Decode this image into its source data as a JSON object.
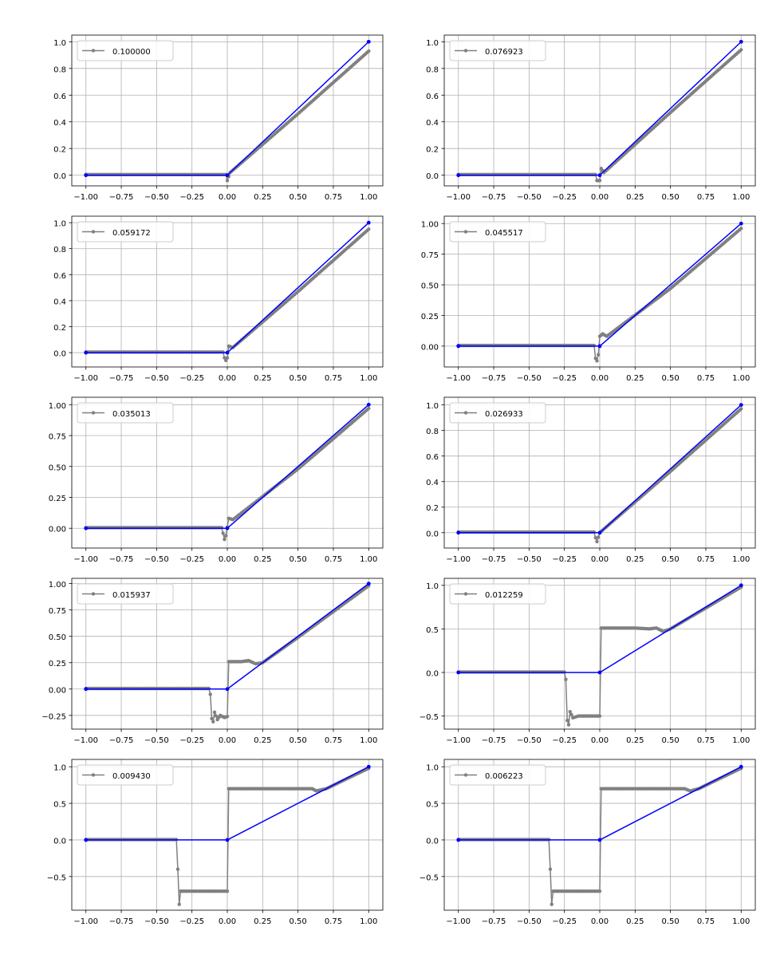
{
  "chart_data": [
    {
      "type": "line",
      "legend": "top-left",
      "xlim": [
        -1.1,
        1.1
      ],
      "ylim": [
        -0.08,
        1.05
      ],
      "xticks": [
        -1.0,
        -0.75,
        -0.5,
        -0.25,
        0.0,
        0.25,
        0.5,
        0.75,
        1.0
      ],
      "xtick_labels": [
        "−1.00",
        "−0.75",
        "−0.50",
        "−0.25",
        "0.00",
        "0.25",
        "0.50",
        "0.75",
        "1.00"
      ],
      "yticks": [
        0.0,
        0.2,
        0.4,
        0.6,
        0.8,
        1.0
      ],
      "ytick_labels": [
        "0.0",
        "0.2",
        "0.4",
        "0.6",
        "0.8",
        "1.0"
      ],
      "grid": true,
      "series": [
        {
          "name": "0.100000",
          "color": "#808080",
          "points": [
            [
              -1,
              0.005
            ],
            [
              -0.01,
              0.005
            ],
            [
              0,
              -0.04
            ],
            [
              0.02,
              0.02
            ],
            [
              0.5,
              0.46
            ],
            [
              1.0,
              0.93
            ]
          ]
        },
        {
          "color": "#0000ff",
          "points": [
            [
              -1,
              0
            ],
            [
              0,
              0
            ],
            [
              1,
              1
            ]
          ]
        }
      ]
    },
    {
      "type": "line",
      "legend": "top-left",
      "xlim": [
        -1.1,
        1.1
      ],
      "ylim": [
        -0.08,
        1.05
      ],
      "xticks": [
        -1.0,
        -0.75,
        -0.5,
        -0.25,
        0.0,
        0.25,
        0.5,
        0.75,
        1.0
      ],
      "xtick_labels": [
        "−1.00",
        "−0.75",
        "−0.50",
        "−0.25",
        "0.00",
        "0.25",
        "0.50",
        "0.75",
        "1.00"
      ],
      "yticks": [
        0.0,
        0.2,
        0.4,
        0.6,
        0.8,
        1.0
      ],
      "ytick_labels": [
        "0.0",
        "0.2",
        "0.4",
        "0.6",
        "0.8",
        "1.0"
      ],
      "grid": true,
      "series": [
        {
          "name": "0.076923",
          "color": "#808080",
          "points": [
            [
              -1,
              0.005
            ],
            [
              -0.03,
              0.005
            ],
            [
              -0.02,
              -0.04
            ],
            [
              0.0,
              -0.04
            ],
            [
              0.01,
              0.05
            ],
            [
              0.03,
              0.02
            ],
            [
              0.5,
              0.47
            ],
            [
              1.0,
              0.94
            ]
          ]
        },
        {
          "color": "#0000ff",
          "points": [
            [
              -1,
              0
            ],
            [
              0,
              0
            ],
            [
              1,
              1
            ]
          ]
        }
      ]
    },
    {
      "type": "line",
      "legend": "top-left",
      "xlim": [
        -1.1,
        1.1
      ],
      "ylim": [
        -0.11,
        1.05
      ],
      "xticks": [
        -1.0,
        -0.75,
        -0.5,
        -0.25,
        0.0,
        0.25,
        0.5,
        0.75,
        1.0
      ],
      "xtick_labels": [
        "−1.00",
        "−0.75",
        "−0.50",
        "−0.25",
        "0.00",
        "0.25",
        "0.50",
        "0.75",
        "1.00"
      ],
      "yticks": [
        0.0,
        0.2,
        0.4,
        0.6,
        0.8,
        1.0
      ],
      "ytick_labels": [
        "0.0",
        "0.2",
        "0.4",
        "0.6",
        "0.8",
        "1.0"
      ],
      "grid": true,
      "series": [
        {
          "name": "0.059172",
          "color": "#808080",
          "points": [
            [
              -1,
              0.005
            ],
            [
              -0.03,
              0.005
            ],
            [
              -0.02,
              -0.04
            ],
            [
              -0.01,
              -0.06
            ],
            [
              0.0,
              -0.04
            ],
            [
              0.01,
              0.05
            ],
            [
              0.04,
              0.04
            ],
            [
              0.5,
              0.47
            ],
            [
              1.0,
              0.95
            ]
          ]
        },
        {
          "color": "#0000ff",
          "points": [
            [
              -1,
              0
            ],
            [
              0,
              0
            ],
            [
              1,
              1
            ]
          ]
        }
      ]
    },
    {
      "type": "line",
      "legend": "top-left",
      "xlim": [
        -1.1,
        1.1
      ],
      "ylim": [
        -0.17,
        1.06
      ],
      "xticks": [
        -1.0,
        -0.75,
        -0.5,
        -0.25,
        0.0,
        0.25,
        0.5,
        0.75,
        1.0
      ],
      "xtick_labels": [
        "−1.00",
        "−0.75",
        "−0.50",
        "−0.25",
        "0.00",
        "0.25",
        "0.50",
        "0.75",
        "1.00"
      ],
      "yticks": [
        0.0,
        0.25,
        0.5,
        0.75,
        1.0
      ],
      "ytick_labels": [
        "0.00",
        "0.25",
        "0.50",
        "0.75",
        "1.00"
      ],
      "grid": true,
      "series": [
        {
          "name": "0.045517",
          "color": "#808080",
          "points": [
            [
              -1,
              0.005
            ],
            [
              -0.04,
              0.005
            ],
            [
              -0.03,
              -0.1
            ],
            [
              -0.02,
              -0.12
            ],
            [
              -0.01,
              -0.07
            ],
            [
              0.0,
              0.08
            ],
            [
              0.02,
              0.1
            ],
            [
              0.05,
              0.08
            ],
            [
              0.5,
              0.47
            ],
            [
              1.0,
              0.96
            ]
          ]
        },
        {
          "color": "#0000ff",
          "points": [
            [
              -1,
              0
            ],
            [
              0,
              0
            ],
            [
              1,
              1
            ]
          ]
        }
      ]
    },
    {
      "type": "line",
      "legend": "top-left",
      "xlim": [
        -1.1,
        1.1
      ],
      "ylim": [
        -0.16,
        1.06
      ],
      "xticks": [
        -1.0,
        -0.75,
        -0.5,
        -0.25,
        0.0,
        0.25,
        0.5,
        0.75,
        1.0
      ],
      "xtick_labels": [
        "−1.00",
        "−0.75",
        "−0.50",
        "−0.25",
        "0.00",
        "0.25",
        "0.50",
        "0.75",
        "1.00"
      ],
      "yticks": [
        0.0,
        0.25,
        0.5,
        0.75,
        1.0
      ],
      "ytick_labels": [
        "0.00",
        "0.25",
        "0.50",
        "0.75",
        "1.00"
      ],
      "grid": true,
      "series": [
        {
          "name": "0.035013",
          "color": "#808080",
          "points": [
            [
              -1,
              0.005
            ],
            [
              -0.04,
              0.005
            ],
            [
              -0.03,
              -0.04
            ],
            [
              -0.02,
              -0.09
            ],
            [
              -0.01,
              -0.06
            ],
            [
              0.01,
              0.08
            ],
            [
              0.04,
              0.07
            ],
            [
              0.5,
              0.48
            ],
            [
              1.0,
              0.97
            ]
          ]
        },
        {
          "color": "#0000ff",
          "points": [
            [
              -1,
              0
            ],
            [
              0,
              0
            ],
            [
              1,
              1
            ]
          ]
        }
      ]
    },
    {
      "type": "line",
      "legend": "top-left",
      "xlim": [
        -1.1,
        1.1
      ],
      "ylim": [
        -0.12,
        1.06
      ],
      "xticks": [
        -1.0,
        -0.75,
        -0.5,
        -0.25,
        0.0,
        0.25,
        0.5,
        0.75,
        1.0
      ],
      "xtick_labels": [
        "−1.00",
        "−0.75",
        "−0.50",
        "−0.25",
        "0.00",
        "0.25",
        "0.50",
        "0.75",
        "1.00"
      ],
      "yticks": [
        0.0,
        0.2,
        0.4,
        0.6,
        0.8,
        1.0
      ],
      "ytick_labels": [
        "0.0",
        "0.2",
        "0.4",
        "0.6",
        "0.8",
        "1.0"
      ],
      "grid": true,
      "series": [
        {
          "name": "0.026933",
          "color": "#808080",
          "points": [
            [
              -1,
              0.005
            ],
            [
              -0.04,
              0.005
            ],
            [
              -0.03,
              -0.04
            ],
            [
              -0.02,
              -0.07
            ],
            [
              0.0,
              0.0
            ],
            [
              0.02,
              0.02
            ],
            [
              0.5,
              0.48
            ],
            [
              1.0,
              0.97
            ]
          ]
        },
        {
          "color": "#0000ff",
          "points": [
            [
              -1,
              0
            ],
            [
              0,
              0
            ],
            [
              1,
              1
            ]
          ]
        }
      ]
    },
    {
      "type": "line",
      "legend": "top-left",
      "xlim": [
        -1.1,
        1.1
      ],
      "ylim": [
        -0.38,
        1.05
      ],
      "xticks": [
        -1.0,
        -0.75,
        -0.5,
        -0.25,
        0.0,
        0.25,
        0.5,
        0.75,
        1.0
      ],
      "xtick_labels": [
        "−1.00",
        "−0.75",
        "−0.50",
        "−0.25",
        "0.00",
        "0.25",
        "0.50",
        "0.75",
        "1.00"
      ],
      "yticks": [
        -0.25,
        0.0,
        0.25,
        0.5,
        0.75,
        1.0
      ],
      "ytick_labels": [
        "−0.25",
        "0.00",
        "0.25",
        "0.50",
        "0.75",
        "1.00"
      ],
      "grid": true,
      "series": [
        {
          "name": "0.015937",
          "color": "#808080",
          "points": [
            [
              -1,
              0.005
            ],
            [
              -0.13,
              0.005
            ],
            [
              -0.12,
              -0.05
            ],
            [
              -0.11,
              -0.28
            ],
            [
              -0.1,
              -0.31
            ],
            [
              -0.09,
              -0.22
            ],
            [
              -0.07,
              -0.29
            ],
            [
              -0.05,
              -0.25
            ],
            [
              -0.02,
              -0.27
            ],
            [
              0.0,
              -0.26
            ],
            [
              0.01,
              0.26
            ],
            [
              0.1,
              0.26
            ],
            [
              0.15,
              0.27
            ],
            [
              0.2,
              0.24
            ],
            [
              0.25,
              0.25
            ],
            [
              0.5,
              0.49
            ],
            [
              1.0,
              0.98
            ]
          ]
        },
        {
          "color": "#0000ff",
          "points": [
            [
              -1,
              0
            ],
            [
              0,
              0
            ],
            [
              1,
              1
            ]
          ]
        }
      ]
    },
    {
      "type": "line",
      "legend": "top-left",
      "xlim": [
        -1.1,
        1.1
      ],
      "ylim": [
        -0.65,
        1.08
      ],
      "xticks": [
        -1.0,
        -0.75,
        -0.5,
        -0.25,
        0.0,
        0.25,
        0.5,
        0.75,
        1.0
      ],
      "xtick_labels": [
        "−1.00",
        "−0.75",
        "−0.50",
        "−0.25",
        "0.00",
        "0.25",
        "0.50",
        "0.75",
        "1.00"
      ],
      "yticks": [
        -0.5,
        0.0,
        0.5,
        1.0
      ],
      "ytick_labels": [
        "−0.5",
        "0.0",
        "0.5",
        "1.0"
      ],
      "grid": true,
      "series": [
        {
          "name": "0.012259",
          "color": "#808080",
          "points": [
            [
              -1,
              0.005
            ],
            [
              -0.25,
              0.005
            ],
            [
              -0.24,
              -0.08
            ],
            [
              -0.23,
              -0.55
            ],
            [
              -0.22,
              -0.6
            ],
            [
              -0.21,
              -0.45
            ],
            [
              -0.19,
              -0.52
            ],
            [
              -0.15,
              -0.5
            ],
            [
              0.0,
              -0.5
            ],
            [
              0.01,
              0.51
            ],
            [
              0.25,
              0.51
            ],
            [
              0.35,
              0.5
            ],
            [
              0.4,
              0.51
            ],
            [
              0.45,
              0.47
            ],
            [
              0.5,
              0.5
            ],
            [
              1.0,
              0.98
            ]
          ]
        },
        {
          "color": "#0000ff",
          "points": [
            [
              -1,
              0
            ],
            [
              0,
              0
            ],
            [
              1,
              1
            ]
          ]
        }
      ]
    },
    {
      "type": "line",
      "legend": "top-left",
      "xlim": [
        -1.1,
        1.1
      ],
      "ylim": [
        -0.96,
        1.1
      ],
      "xticks": [
        -1.0,
        -0.75,
        -0.5,
        -0.25,
        0.0,
        0.25,
        0.5,
        0.75,
        1.0
      ],
      "xtick_labels": [
        "−1.00",
        "−0.75",
        "−0.50",
        "−0.25",
        "0.00",
        "0.25",
        "0.50",
        "0.75",
        "1.00"
      ],
      "yticks": [
        -0.5,
        0.0,
        0.5,
        1.0
      ],
      "ytick_labels": [
        "−0.5",
        "0.0",
        "0.5",
        "1.0"
      ],
      "grid": true,
      "series": [
        {
          "name": "0.009430",
          "color": "#808080",
          "points": [
            [
              -1,
              0.005
            ],
            [
              -0.36,
              0.005
            ],
            [
              -0.35,
              -0.4
            ],
            [
              -0.34,
              -0.88
            ],
            [
              -0.33,
              -0.7
            ],
            [
              -0.3,
              -0.7
            ],
            [
              0.0,
              -0.7
            ],
            [
              0.01,
              0.7
            ],
            [
              0.55,
              0.7
            ],
            [
              0.6,
              0.7
            ],
            [
              0.63,
              0.67
            ],
            [
              0.7,
              0.7
            ],
            [
              1.0,
              0.98
            ]
          ]
        },
        {
          "color": "#0000ff",
          "points": [
            [
              -1,
              0
            ],
            [
              0,
              0
            ],
            [
              1,
              1
            ]
          ]
        }
      ]
    },
    {
      "type": "line",
      "legend": "top-left",
      "xlim": [
        -1.1,
        1.1
      ],
      "ylim": [
        -0.96,
        1.1
      ],
      "xticks": [
        -1.0,
        -0.75,
        -0.5,
        -0.25,
        0.0,
        0.25,
        0.5,
        0.75,
        1.0
      ],
      "xtick_labels": [
        "−1.00",
        "−0.75",
        "−0.50",
        "−0.25",
        "0.00",
        "0.25",
        "0.50",
        "0.75",
        "1.00"
      ],
      "yticks": [
        -0.5,
        0.0,
        0.5,
        1.0
      ],
      "ytick_labels": [
        "−0.5",
        "0.0",
        "0.5",
        "1.0"
      ],
      "grid": true,
      "series": [
        {
          "name": "0.006223",
          "color": "#808080",
          "points": [
            [
              -1,
              0.005
            ],
            [
              -0.36,
              0.005
            ],
            [
              -0.35,
              -0.4
            ],
            [
              -0.34,
              -0.88
            ],
            [
              -0.33,
              -0.7
            ],
            [
              -0.3,
              -0.7
            ],
            [
              0.0,
              -0.7
            ],
            [
              0.01,
              0.7
            ],
            [
              0.55,
              0.7
            ],
            [
              0.6,
              0.7
            ],
            [
              0.64,
              0.67
            ],
            [
              0.7,
              0.7
            ],
            [
              1.0,
              0.98
            ]
          ]
        },
        {
          "color": "#0000ff",
          "points": [
            [
              -1,
              0
            ],
            [
              0,
              0
            ],
            [
              1,
              1
            ]
          ]
        }
      ]
    }
  ]
}
